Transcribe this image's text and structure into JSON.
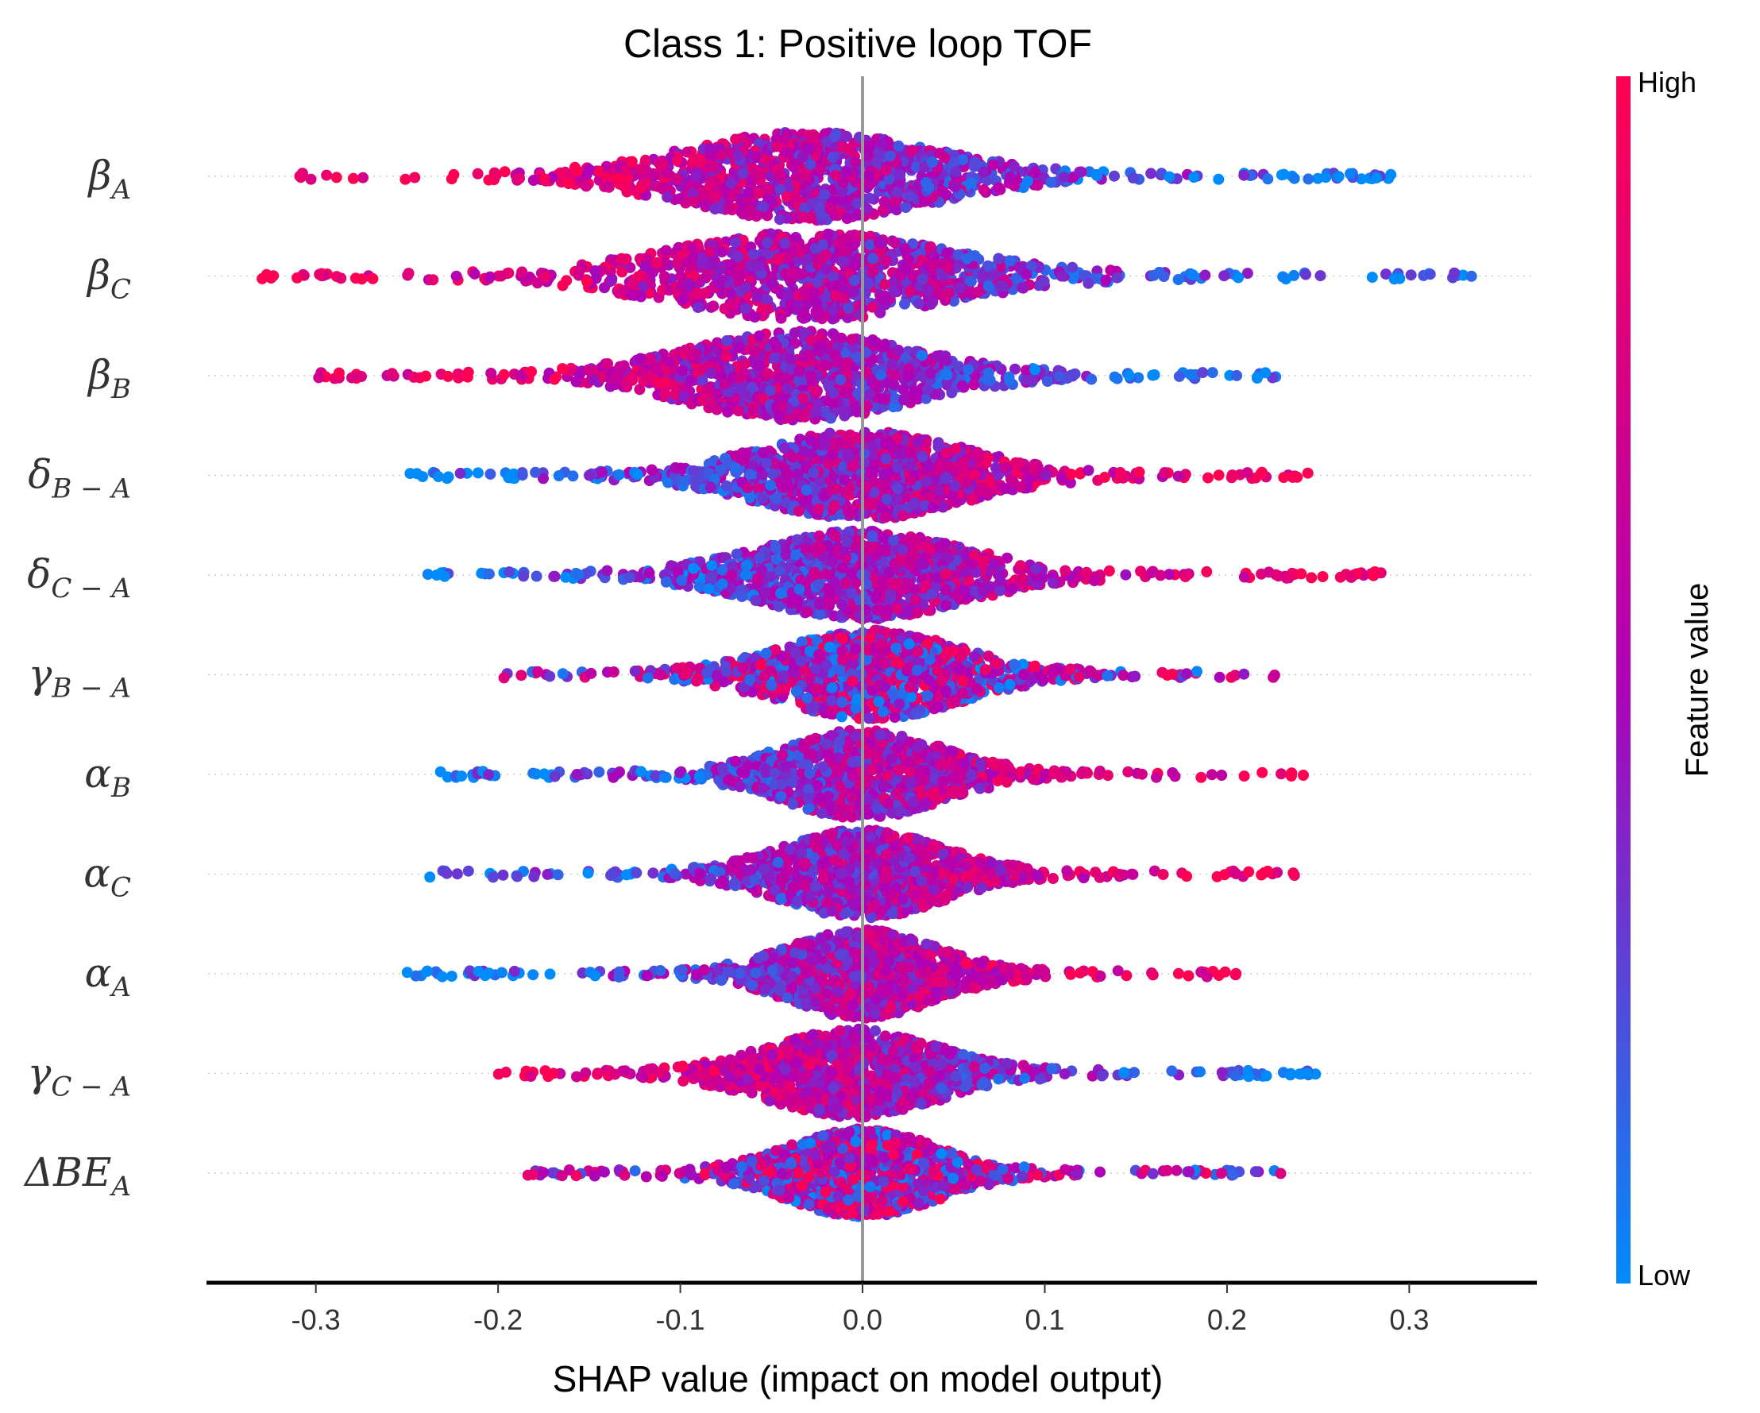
{
  "chart_data": {
    "type": "scatter",
    "subtype": "shap-beeswarm",
    "title": "Class 1: Positive loop TOF",
    "xlabel": "SHAP value (impact on model output)",
    "xlim": [
      -0.36,
      0.37
    ],
    "xticks": [
      "-0.3",
      "-0.2",
      "-0.1",
      "0.0",
      "0.1",
      "0.2",
      "0.3"
    ],
    "xtick_values": [
      -0.3,
      -0.2,
      -0.1,
      0.0,
      0.1,
      0.2,
      0.3
    ],
    "grid": false,
    "colorbar": {
      "label": "Feature value",
      "high_label": "High",
      "low_label": "Low",
      "high_color": "#ff0052",
      "mid_color": "#b000b6",
      "low_color": "#008bfb"
    },
    "features": [
      {
        "base": "β",
        "sub": "A",
        "min": -0.31,
        "max": 0.3,
        "center": -0.03,
        "spread": 0.11,
        "low_side": "positive"
      },
      {
        "base": "β",
        "sub": "C",
        "min": -0.33,
        "max": 0.34,
        "center": -0.03,
        "spread": 0.12,
        "low_side": "positive"
      },
      {
        "base": "β",
        "sub": "B",
        "min": -0.3,
        "max": 0.23,
        "center": -0.035,
        "spread": 0.1,
        "low_side": "positive"
      },
      {
        "base": "δ",
        "sub": "B − A",
        "min": -0.25,
        "max": 0.25,
        "center": 0.0,
        "spread": 0.09,
        "low_side": "negative"
      },
      {
        "base": "δ",
        "sub": "C − A",
        "min": -0.24,
        "max": 0.285,
        "center": 0.0,
        "spread": 0.09,
        "low_side": "negative"
      },
      {
        "base": "γ",
        "sub": "B − A",
        "min": -0.205,
        "max": 0.23,
        "center": 0.005,
        "spread": 0.08,
        "low_side": "mixed"
      },
      {
        "base": "α",
        "sub": "B",
        "min": -0.24,
        "max": 0.245,
        "center": 0.0,
        "spread": 0.07,
        "low_side": "negative"
      },
      {
        "base": "α",
        "sub": "C",
        "min": -0.24,
        "max": 0.24,
        "center": 0.0,
        "spread": 0.07,
        "low_side": "negative"
      },
      {
        "base": "α",
        "sub": "A",
        "min": -0.25,
        "max": 0.205,
        "center": 0.0,
        "spread": 0.065,
        "low_side": "negative"
      },
      {
        "base": "γ",
        "sub": "C − A",
        "min": -0.2,
        "max": 0.25,
        "center": -0.005,
        "spread": 0.075,
        "low_side": "positive"
      },
      {
        "base": "ΔBE",
        "sub": "A",
        "min": -0.19,
        "max": 0.235,
        "center": 0.0,
        "spread": 0.065,
        "low_side": "mixed"
      }
    ]
  }
}
